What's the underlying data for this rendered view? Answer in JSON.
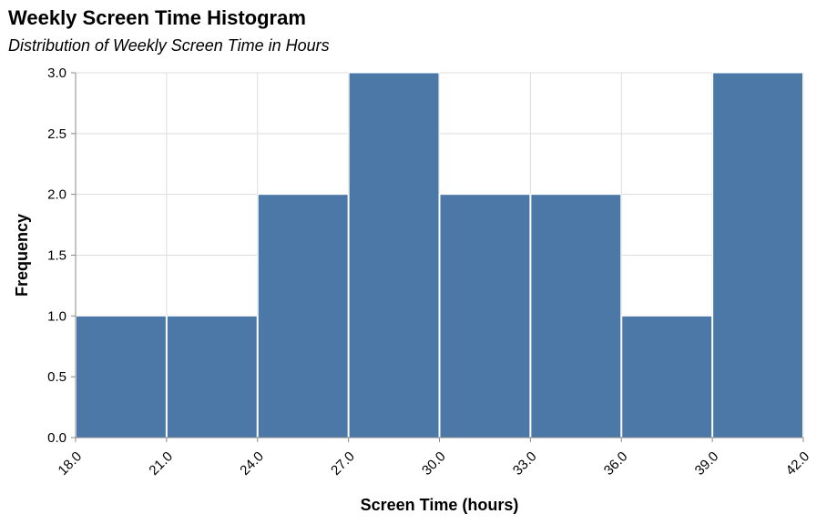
{
  "chart_data": {
    "type": "bar",
    "title": "Weekly Screen Time Histogram",
    "subtitle": "Distribution of Weekly Screen Time in Hours",
    "xlabel": "Screen Time (hours)",
    "ylabel": "Frequency",
    "bins": [
      {
        "start": 18,
        "end": 21,
        "count": 1
      },
      {
        "start": 21,
        "end": 24,
        "count": 1
      },
      {
        "start": 24,
        "end": 27,
        "count": 2
      },
      {
        "start": 27,
        "end": 30,
        "count": 3
      },
      {
        "start": 30,
        "end": 33,
        "count": 2
      },
      {
        "start": 33,
        "end": 36,
        "count": 2
      },
      {
        "start": 36,
        "end": 39,
        "count": 1
      },
      {
        "start": 39,
        "end": 42,
        "count": 3
      }
    ],
    "xlim": [
      18,
      42
    ],
    "ylim": [
      0,
      3
    ],
    "x_ticks": [
      "18.0",
      "21.0",
      "24.0",
      "27.0",
      "30.0",
      "33.0",
      "36.0",
      "39.0",
      "42.0"
    ],
    "y_ticks": [
      "0.0",
      "0.5",
      "1.0",
      "1.5",
      "2.0",
      "2.5",
      "3.0"
    ],
    "grid": true,
    "bar_color": "#4c78a8"
  }
}
